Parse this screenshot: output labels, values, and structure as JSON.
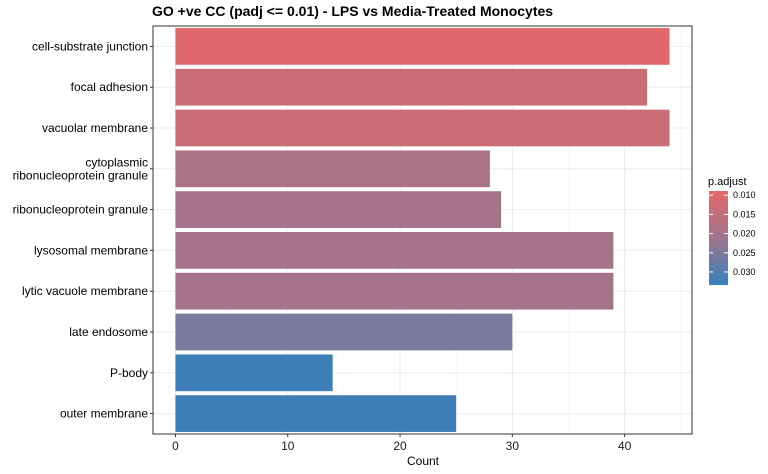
{
  "chart_data": {
    "type": "bar",
    "orientation": "horizontal",
    "title": "GO +ve CC (padj <= 0.01) - LPS vs Media-Treated Monocytes",
    "xlabel": "Count",
    "ylabel": "",
    "xlim": [
      -2,
      46
    ],
    "x_ticks": [
      0,
      10,
      20,
      30,
      40
    ],
    "grid": true,
    "categories": [
      [
        "cell-substrate junction"
      ],
      [
        "focal adhesion"
      ],
      [
        "vacuolar membrane"
      ],
      [
        "cytoplasmic",
        "ribonucleoprotein granule"
      ],
      [
        "ribonucleoprotein granule"
      ],
      [
        "lysosomal membrane"
      ],
      [
        "lytic vacuole membrane"
      ],
      [
        "late endosome"
      ],
      [
        "P-body"
      ],
      [
        "outer membrane"
      ]
    ],
    "values": [
      44,
      42,
      44,
      28,
      29,
      39,
      39,
      30,
      14,
      25
    ],
    "p_adjust": [
      0.0095,
      0.0135,
      0.0135,
      0.0195,
      0.0205,
      0.0205,
      0.0205,
      0.0255,
      0.0325,
      0.0325
    ],
    "legend": {
      "title": "p.adjust",
      "placement": "right",
      "ticks": [
        "0.010",
        "0.015",
        "0.020",
        "0.025",
        "0.030"
      ],
      "tick_values": [
        0.01,
        0.015,
        0.02,
        0.025,
        0.03
      ],
      "range": [
        0.0089,
        0.0334
      ],
      "color_low": "#E4686A",
      "color_high": "#3680BE"
    }
  }
}
